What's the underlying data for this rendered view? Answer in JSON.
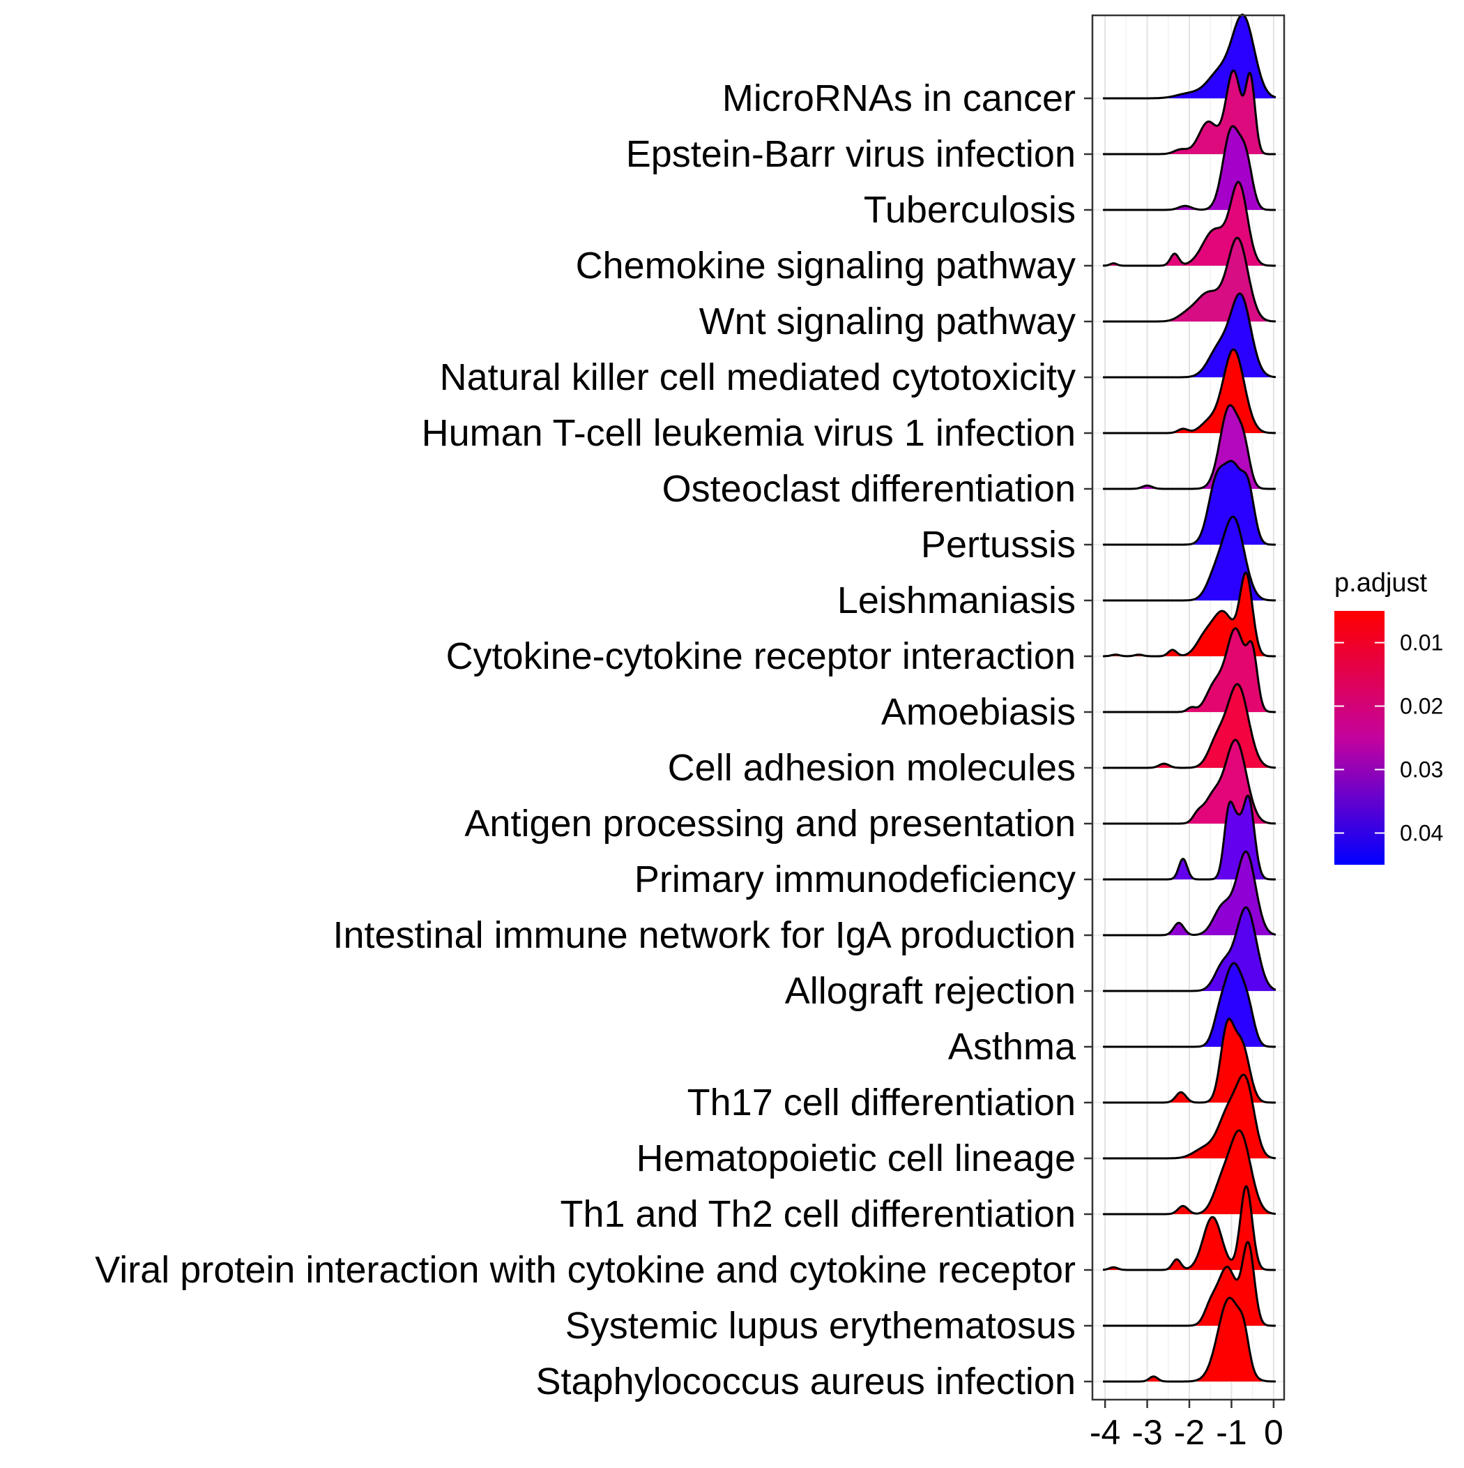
{
  "chart_data": {
    "type": "ridgeline",
    "title": "",
    "xlabel": "",
    "ylabel": "",
    "xlim": [
      -4.3,
      0.25
    ],
    "x_ticks": [
      -4,
      -3,
      -2,
      -1,
      0
    ],
    "x_tick_labels": [
      "-4",
      "-3",
      "-2",
      "-1",
      "0"
    ],
    "grid": true,
    "legend": {
      "title": "p.adjust",
      "placement": "right",
      "type": "colorbar",
      "low_color": "#ff0000",
      "high_color": "#0000ff",
      "range": [
        0.005,
        0.045
      ],
      "ticks": [
        0.01,
        0.02,
        0.03,
        0.04
      ],
      "tick_labels": [
        "0.01",
        "0.02",
        "0.03",
        "0.04"
      ]
    },
    "categories": [
      "MicroRNAs in cancer",
      "Epstein-Barr virus infection",
      "Tuberculosis",
      "Chemokine signaling pathway",
      "Wnt signaling pathway",
      "Natural killer cell mediated cytotoxicity",
      "Human T-cell leukemia virus 1 infection",
      "Osteoclast differentiation",
      "Pertussis",
      "Leishmaniasis",
      "Cytokine-cytokine receptor interaction",
      "Amoebiasis",
      "Cell adhesion molecules",
      "Antigen processing and presentation",
      "Primary immunodeficiency",
      "Intestinal immune network for IgA production",
      "Allograft rejection",
      "Asthma",
      "Th17 cell differentiation",
      "Hematopoietic cell lineage",
      "Th1 and Th2 cell differentiation",
      "Viral protein interaction with cytokine and cytokine receptor",
      "Systemic lupus erythematosus",
      "Staphylococcus aureus infection"
    ],
    "series": [
      {
        "p_adjust": 0.045,
        "color": "#2a00ff",
        "peaks": [
          [
            -0.72,
            0.26,
            1.0
          ],
          [
            -1.3,
            0.28,
            0.3
          ],
          [
            -2.0,
            0.3,
            0.06
          ]
        ]
      },
      {
        "p_adjust": 0.02,
        "color": "#dd0a7d",
        "peaks": [
          [
            -0.95,
            0.18,
            0.9
          ],
          [
            -0.55,
            0.11,
            0.8
          ],
          [
            -1.55,
            0.22,
            0.35
          ],
          [
            -2.2,
            0.16,
            0.05
          ]
        ]
      },
      {
        "p_adjust": 0.03,
        "color": "#a400c9",
        "peaks": [
          [
            -1.0,
            0.2,
            1.0
          ],
          [
            -0.65,
            0.15,
            0.55
          ],
          [
            -2.1,
            0.15,
            0.05
          ]
        ]
      },
      {
        "p_adjust": 0.018,
        "color": "#e3067a",
        "peaks": [
          [
            -0.82,
            0.2,
            1.0
          ],
          [
            -1.4,
            0.28,
            0.45
          ],
          [
            -2.35,
            0.1,
            0.15
          ],
          [
            -3.8,
            0.08,
            0.03
          ]
        ]
      },
      {
        "p_adjust": 0.02,
        "color": "#d70d84",
        "peaks": [
          [
            -0.85,
            0.24,
            1.0
          ],
          [
            -1.55,
            0.3,
            0.35
          ],
          [
            -2.1,
            0.2,
            0.06
          ]
        ]
      },
      {
        "p_adjust": 0.045,
        "color": "#2a00ff",
        "peaks": [
          [
            -0.78,
            0.24,
            1.0
          ],
          [
            -1.3,
            0.25,
            0.35
          ]
        ]
      },
      {
        "p_adjust": 0.005,
        "color": "#ff0000",
        "peaks": [
          [
            -0.95,
            0.25,
            1.0
          ],
          [
            -1.55,
            0.2,
            0.12
          ],
          [
            -2.15,
            0.12,
            0.05
          ]
        ]
      },
      {
        "p_adjust": 0.025,
        "color": "#b308bd",
        "peaks": [
          [
            -1.05,
            0.22,
            1.0
          ],
          [
            -0.7,
            0.14,
            0.4
          ],
          [
            -3.0,
            0.12,
            0.04
          ]
        ]
      },
      {
        "p_adjust": 0.045,
        "color": "#2a00ff",
        "peaks": [
          [
            -1.35,
            0.2,
            0.75
          ],
          [
            -0.95,
            0.2,
            0.85
          ],
          [
            -0.6,
            0.15,
            0.6
          ]
        ]
      },
      {
        "p_adjust": 0.045,
        "color": "#2a00ff",
        "peaks": [
          [
            -0.95,
            0.25,
            1.0
          ],
          [
            -1.4,
            0.2,
            0.25
          ]
        ]
      },
      {
        "p_adjust": 0.005,
        "color": "#ff0000",
        "peaks": [
          [
            -0.65,
            0.15,
            1.0
          ],
          [
            -1.2,
            0.25,
            0.55
          ],
          [
            -1.65,
            0.2,
            0.2
          ],
          [
            -2.4,
            0.1,
            0.08
          ],
          [
            -3.2,
            0.1,
            0.02
          ],
          [
            -3.75,
            0.1,
            0.02
          ]
        ]
      },
      {
        "p_adjust": 0.015,
        "color": "#e4066f",
        "peaks": [
          [
            -0.9,
            0.22,
            0.95
          ],
          [
            -0.5,
            0.12,
            0.6
          ],
          [
            -1.4,
            0.2,
            0.3
          ],
          [
            -1.95,
            0.1,
            0.05
          ]
        ]
      },
      {
        "p_adjust": 0.01,
        "color": "#f3033f",
        "peaks": [
          [
            -0.85,
            0.25,
            1.0
          ],
          [
            -1.35,
            0.2,
            0.3
          ],
          [
            -2.6,
            0.12,
            0.05
          ]
        ]
      },
      {
        "p_adjust": 0.018,
        "color": "#e3067a",
        "peaks": [
          [
            -0.9,
            0.25,
            1.0
          ],
          [
            -1.45,
            0.2,
            0.3
          ],
          [
            -1.8,
            0.12,
            0.1
          ]
        ]
      },
      {
        "p_adjust": 0.04,
        "color": "#6300ee",
        "peaks": [
          [
            -1.05,
            0.12,
            0.7
          ],
          [
            -0.6,
            0.14,
            0.8
          ],
          [
            -0.85,
            0.1,
            0.3
          ],
          [
            -2.15,
            0.1,
            0.2
          ]
        ]
      },
      {
        "p_adjust": 0.035,
        "color": "#8f00d4",
        "peaks": [
          [
            -0.65,
            0.22,
            1.0
          ],
          [
            -1.2,
            0.22,
            0.35
          ],
          [
            -2.25,
            0.12,
            0.15
          ]
        ]
      },
      {
        "p_adjust": 0.04,
        "color": "#5800f0",
        "peaks": [
          [
            -0.65,
            0.24,
            1.0
          ],
          [
            -1.2,
            0.2,
            0.3
          ]
        ]
      },
      {
        "p_adjust": 0.045,
        "color": "#2a00ff",
        "peaks": [
          [
            -0.95,
            0.22,
            1.0
          ],
          [
            -0.6,
            0.15,
            0.35
          ],
          [
            -1.3,
            0.15,
            0.25
          ]
        ]
      },
      {
        "p_adjust": 0.005,
        "color": "#ff0000",
        "peaks": [
          [
            -1.1,
            0.16,
            0.85
          ],
          [
            -0.75,
            0.18,
            0.65
          ],
          [
            -2.2,
            0.12,
            0.12
          ]
        ]
      },
      {
        "p_adjust": 0.005,
        "color": "#ff0000",
        "peaks": [
          [
            -0.65,
            0.2,
            0.85
          ],
          [
            -1.05,
            0.25,
            0.6
          ],
          [
            -1.65,
            0.25,
            0.12
          ]
        ]
      },
      {
        "p_adjust": 0.005,
        "color": "#ff0000",
        "peaks": [
          [
            -0.8,
            0.25,
            1.0
          ],
          [
            -1.25,
            0.2,
            0.3
          ],
          [
            -2.15,
            0.12,
            0.1
          ]
        ]
      },
      {
        "p_adjust": 0.005,
        "color": "#ff0000",
        "peaks": [
          [
            -0.65,
            0.14,
            0.95
          ],
          [
            -1.45,
            0.22,
            0.6
          ],
          [
            -2.3,
            0.1,
            0.12
          ],
          [
            -3.8,
            0.1,
            0.03
          ]
        ]
      },
      {
        "p_adjust": 0.005,
        "color": "#ff0000",
        "peaks": [
          [
            -0.6,
            0.14,
            0.95
          ],
          [
            -1.1,
            0.22,
            0.7
          ],
          [
            -1.5,
            0.15,
            0.2
          ]
        ]
      },
      {
        "p_adjust": 0.005,
        "color": "#ff0000",
        "peaks": [
          [
            -1.05,
            0.27,
            1.0
          ],
          [
            -0.7,
            0.12,
            0.3
          ],
          [
            -2.85,
            0.1,
            0.06
          ]
        ]
      }
    ]
  }
}
